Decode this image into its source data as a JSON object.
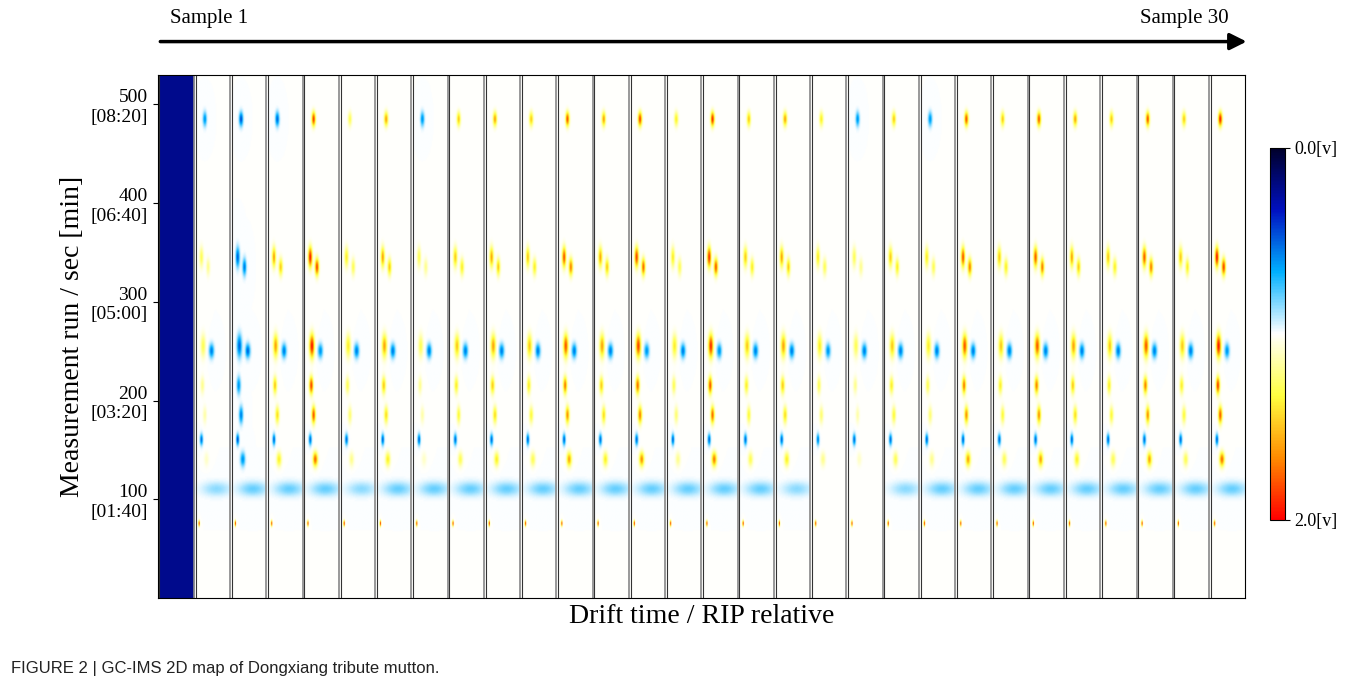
{
  "chart_data": {
    "type": "heatmap",
    "caption": "FIGURE 2 | GC-IMS 2D map of Dongxiang tribute mutton.",
    "xlabel": "Drift time / RIP relative",
    "ylabel": "Measurement run / sec [min]",
    "arrow_labels": [
      "Sample 1",
      "Sample 30"
    ],
    "tick_labels": "y",
    "ylim": [
      0,
      530
    ],
    "yticks": [
      {
        "value": 100,
        "label": "100\n[01:40]"
      },
      {
        "value": 200,
        "label": "200\n[03:20]"
      },
      {
        "value": 300,
        "label": "300\n[05:00]"
      },
      {
        "value": 400,
        "label": "400\n[06:40]"
      },
      {
        "value": 500,
        "label": "500\n[08:20]"
      }
    ],
    "xlim": [
      0.95,
      2.0
    ],
    "rip": 1.0,
    "peaks": [
      {
        "rt": 485,
        "drift": 1.25
      },
      {
        "rt": 345,
        "drift": 1.15
      },
      {
        "rt": 335,
        "drift": 1.35
      },
      {
        "rt": 255,
        "drift": 1.2
      },
      {
        "rt": 250,
        "drift": 1.45
      },
      {
        "rt": 215,
        "drift": 1.18
      },
      {
        "rt": 185,
        "drift": 1.25
      },
      {
        "rt": 160,
        "drift": 1.15
      },
      {
        "rt": 140,
        "drift": 1.3
      },
      {
        "rt": 110,
        "drift": 1.6
      },
      {
        "rt": 75,
        "drift": 1.08
      }
    ],
    "cells": [
      {
        "background": 0.22,
        "values": [
          0.22,
          0.22,
          0.22,
          0.22,
          0.22,
          0.22,
          0.22,
          0.22,
          0.22,
          0.22,
          0.22
        ]
      },
      {
        "background": 1.0,
        "values": [
          0.6,
          1.3,
          1.2,
          1.3,
          0.55,
          1.2,
          1.15,
          0.5,
          1.1,
          0.85,
          1.9
        ]
      },
      {
        "background": 1.0,
        "values": [
          0.45,
          0.5,
          0.55,
          0.5,
          0.5,
          0.6,
          0.55,
          0.45,
          0.6,
          0.8,
          1.9
        ]
      },
      {
        "background": 1.0,
        "values": [
          0.5,
          1.6,
          1.5,
          1.6,
          0.55,
          1.5,
          1.45,
          0.5,
          1.4,
          0.8,
          1.9
        ]
      },
      {
        "background": 1.0,
        "values": [
          1.85,
          1.95,
          1.85,
          1.95,
          0.6,
          1.85,
          1.8,
          0.5,
          1.75,
          0.8,
          1.9
        ]
      },
      {
        "background": 1.0,
        "values": [
          1.3,
          1.4,
          1.3,
          1.4,
          0.55,
          1.3,
          1.25,
          0.5,
          1.2,
          0.85,
          1.9
        ]
      },
      {
        "background": 1.0,
        "values": [
          1.6,
          1.6,
          1.5,
          1.6,
          0.55,
          1.5,
          1.45,
          0.5,
          1.4,
          0.8,
          1.9
        ]
      },
      {
        "background": 1.0,
        "values": [
          0.6,
          1.3,
          1.2,
          1.3,
          0.55,
          1.2,
          1.15,
          0.5,
          1.1,
          0.8,
          1.9
        ]
      },
      {
        "background": 1.0,
        "values": [
          1.5,
          1.5,
          1.4,
          1.5,
          0.55,
          1.4,
          1.35,
          0.5,
          1.3,
          0.8,
          1.9
        ]
      },
      {
        "background": 1.0,
        "values": [
          1.6,
          1.6,
          1.5,
          1.6,
          0.55,
          1.5,
          1.45,
          0.5,
          1.4,
          0.8,
          1.9
        ]
      },
      {
        "background": 1.0,
        "values": [
          1.5,
          1.5,
          1.4,
          1.5,
          0.55,
          1.4,
          1.35,
          0.5,
          1.3,
          0.8,
          1.9
        ]
      },
      {
        "background": 1.0,
        "values": [
          1.8,
          1.8,
          1.7,
          1.8,
          0.55,
          1.7,
          1.65,
          0.5,
          1.6,
          0.8,
          1.9
        ]
      },
      {
        "background": 1.0,
        "values": [
          1.6,
          1.6,
          1.5,
          1.6,
          0.55,
          1.5,
          1.45,
          0.5,
          1.4,
          0.8,
          1.9
        ]
      },
      {
        "background": 1.0,
        "values": [
          1.85,
          1.85,
          1.75,
          1.85,
          0.6,
          1.75,
          1.7,
          0.5,
          1.65,
          0.8,
          1.9
        ]
      },
      {
        "background": 1.0,
        "values": [
          1.4,
          1.4,
          1.3,
          1.4,
          0.55,
          1.3,
          1.25,
          0.5,
          1.2,
          0.8,
          1.9
        ]
      },
      {
        "background": 1.0,
        "values": [
          1.9,
          1.9,
          1.8,
          1.9,
          0.6,
          1.8,
          1.75,
          0.5,
          1.7,
          0.8,
          1.9
        ]
      },
      {
        "background": 1.0,
        "values": [
          1.5,
          1.5,
          1.4,
          1.5,
          0.55,
          1.4,
          1.35,
          0.5,
          1.3,
          0.8,
          1.9
        ]
      },
      {
        "background": 1.0,
        "values": [
          1.6,
          1.6,
          1.5,
          1.6,
          0.55,
          1.5,
          1.45,
          0.5,
          1.4,
          0.85,
          1.9
        ]
      },
      {
        "background": 1.0,
        "values": [
          1.4,
          1.4,
          1.3,
          1.4,
          0.6,
          1.3,
          1.25,
          0.55,
          1.2,
          1.0,
          1.9
        ]
      },
      {
        "background": 1.0,
        "values": [
          0.6,
          1.3,
          1.2,
          1.3,
          0.55,
          1.2,
          1.15,
          0.5,
          1.1,
          1.0,
          1.9
        ]
      },
      {
        "background": 1.0,
        "values": [
          1.5,
          1.5,
          1.4,
          1.5,
          0.55,
          1.4,
          1.35,
          0.5,
          1.3,
          0.85,
          1.9
        ]
      },
      {
        "background": 1.0,
        "values": [
          0.6,
          1.4,
          1.3,
          1.4,
          0.55,
          1.3,
          1.25,
          0.5,
          1.2,
          0.8,
          1.9
        ]
      },
      {
        "background": 1.0,
        "values": [
          1.8,
          1.8,
          1.7,
          1.8,
          0.55,
          1.7,
          1.65,
          0.5,
          1.6,
          0.8,
          1.9
        ]
      },
      {
        "background": 1.0,
        "values": [
          1.5,
          1.5,
          1.4,
          1.5,
          0.55,
          1.4,
          1.35,
          0.5,
          1.3,
          0.8,
          1.9
        ]
      },
      {
        "background": 1.0,
        "values": [
          1.8,
          1.8,
          1.7,
          1.8,
          0.55,
          1.7,
          1.65,
          0.5,
          1.6,
          0.8,
          1.9
        ]
      },
      {
        "background": 1.0,
        "values": [
          1.6,
          1.6,
          1.5,
          1.6,
          0.55,
          1.5,
          1.45,
          0.5,
          1.4,
          0.8,
          1.9
        ]
      },
      {
        "background": 1.0,
        "values": [
          1.5,
          1.5,
          1.4,
          1.5,
          0.55,
          1.4,
          1.35,
          0.5,
          1.3,
          0.8,
          1.9
        ]
      },
      {
        "background": 1.0,
        "values": [
          1.8,
          1.8,
          1.7,
          1.8,
          0.55,
          1.7,
          1.65,
          0.5,
          1.6,
          0.8,
          1.9
        ]
      },
      {
        "background": 1.0,
        "values": [
          1.5,
          1.5,
          1.4,
          1.5,
          0.55,
          1.4,
          1.35,
          0.5,
          1.3,
          0.8,
          1.9
        ]
      },
      {
        "background": 1.0,
        "values": [
          1.95,
          1.95,
          1.85,
          1.95,
          0.6,
          1.85,
          1.8,
          0.5,
          1.75,
          0.8,
          1.9
        ]
      }
    ],
    "colorbar": {
      "range": [
        0.0,
        2.0
      ],
      "ticks": [
        {
          "value": 0.0,
          "label": "0.0[v]"
        },
        {
          "value": 2.0,
          "label": "2.0[v]"
        }
      ]
    }
  }
}
